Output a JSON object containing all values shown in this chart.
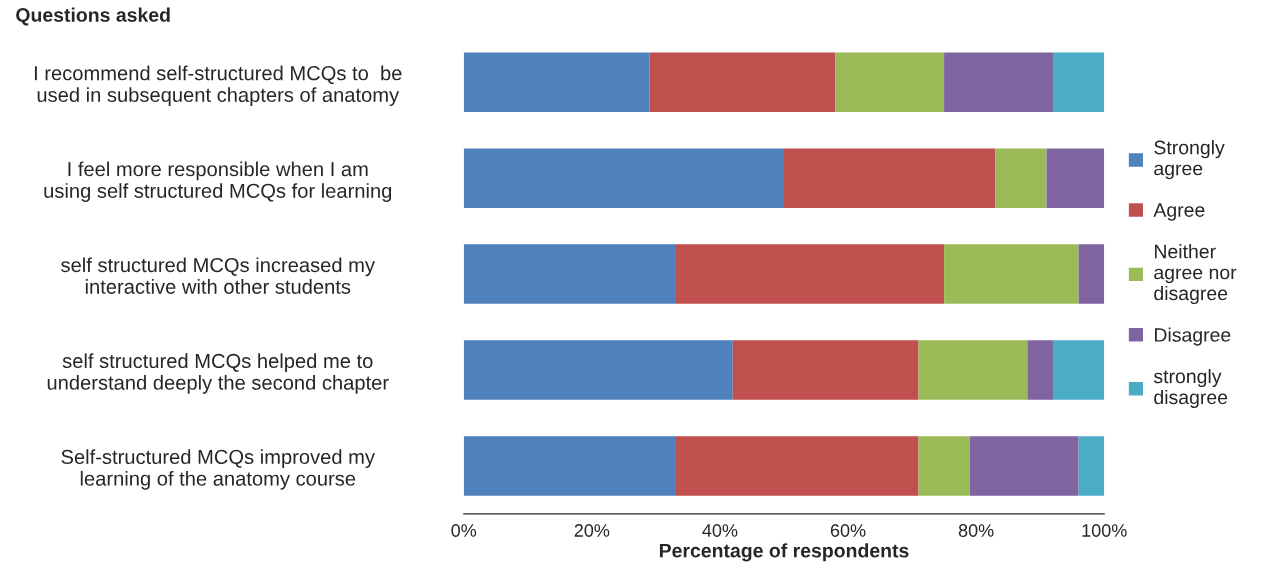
{
  "chart_data": {
    "type": "bar",
    "orientation": "horizontal",
    "stacked": true,
    "ylabel": "Questions asked",
    "xlabel": "Percentage of respondents",
    "categories": [
      "I recommend self-structured MCQs to  be used in subsequent chapters of anatomy",
      "I feel more responsible when I am using self structured MCQs for learning",
      "self structured MCQs increased my interactive with other students",
      "self structured MCQs helped me to understand deeply the second chapter",
      "Self-structured MCQs improved my learning of the anatomy course"
    ],
    "series": [
      {
        "name": "Strongly agree",
        "color": "#4f81bd",
        "values": [
          29,
          50,
          33,
          42,
          33
        ]
      },
      {
        "name": "Agree",
        "color": "#c0504d",
        "values": [
          29,
          33,
          42,
          29,
          38
        ]
      },
      {
        "name": "Neither agree nor disagree",
        "color": "#9bbb59",
        "values": [
          17,
          8,
          21,
          17,
          8
        ]
      },
      {
        "name": "Disagree",
        "color": "#8064a2",
        "values": [
          17,
          9,
          4,
          4,
          17
        ]
      },
      {
        "name": "strongly disagree",
        "color": "#4bacc6",
        "values": [
          8,
          0,
          0,
          8,
          4
        ]
      }
    ],
    "xlim": [
      0,
      100
    ],
    "xticks": [
      {
        "value": 0,
        "label": "0%"
      },
      {
        "value": 20,
        "label": "20%"
      },
      {
        "value": 40,
        "label": "40%"
      },
      {
        "value": 60,
        "label": "60%"
      },
      {
        "value": 80,
        "label": "80%"
      },
      {
        "value": 100,
        "label": "100%"
      }
    ],
    "grid": false,
    "legend": "right"
  }
}
